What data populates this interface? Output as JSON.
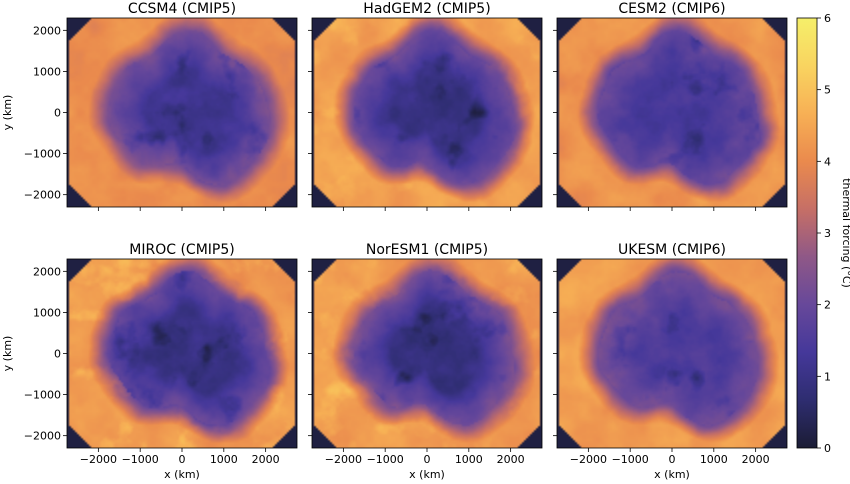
{
  "chart_data": {
    "type": "heatmap",
    "layout": {
      "rows": 2,
      "cols": 3
    },
    "panels": [
      {
        "title": "CCSM4 (CMIP5)",
        "ocean_level": 4.1,
        "shelf_level": 2.3,
        "interior_level": 1.2,
        "warm_spots": 0.0
      },
      {
        "title": "HadGEM2 (CMIP5)",
        "ocean_level": 4.4,
        "shelf_level": 2.1,
        "interior_level": 1.0,
        "warm_spots": 0.3
      },
      {
        "title": "CESM2 (CMIP6)",
        "ocean_level": 4.2,
        "shelf_level": 2.0,
        "interior_level": 1.4,
        "warm_spots": 0.0
      },
      {
        "title": "MIROC (CMIP5)",
        "ocean_level": 4.3,
        "shelf_level": 2.0,
        "interior_level": 1.0,
        "warm_spots": 0.5
      },
      {
        "title": "NorESM1 (CMIP5)",
        "ocean_level": 4.3,
        "shelf_level": 2.3,
        "interior_level": 0.9,
        "warm_spots": 0.4
      },
      {
        "title": "UKESM (CMIP6)",
        "ocean_level": 4.4,
        "shelf_level": 2.2,
        "interior_level": 1.5,
        "warm_spots": 0.0
      }
    ],
    "xlabel": "x (km)",
    "ylabel": "y (km)",
    "xlim": [
      -2750,
      2750
    ],
    "ylim": [
      -2300,
      2300
    ],
    "x_ticks": [
      -2000,
      -1000,
      0,
      1000,
      2000
    ],
    "x_tick_labels": [
      "−2000",
      "−1000",
      "0",
      "1000",
      "2000"
    ],
    "y_ticks": [
      2000,
      1000,
      0,
      -1000,
      -2000
    ],
    "y_tick_labels": [
      "2000",
      "1000",
      "0",
      "−1000",
      "−2000"
    ],
    "colorbar": {
      "label": "thermal forcing (°C)",
      "range": [
        0,
        6
      ],
      "ticks": [
        0,
        1,
        2,
        3,
        4,
        5,
        6
      ],
      "tick_labels": [
        "0",
        "1",
        "2",
        "3",
        "4",
        "5",
        "6"
      ],
      "colors": [
        "#1b1c34",
        "#2e2d70",
        "#45389a",
        "#67489a",
        "#8f5887",
        "#c66f66",
        "#ea8a4d",
        "#f7b055",
        "#f9d460",
        "#f5ef6a"
      ]
    }
  }
}
